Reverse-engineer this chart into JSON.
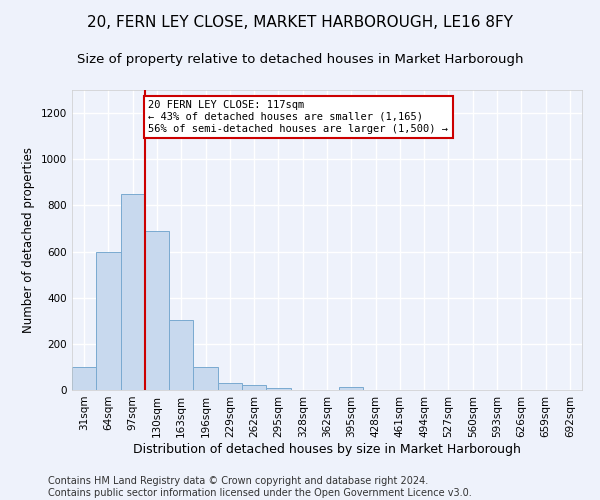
{
  "title": "20, FERN LEY CLOSE, MARKET HARBOROUGH, LE16 8FY",
  "subtitle": "Size of property relative to detached houses in Market Harborough",
  "xlabel": "Distribution of detached houses by size in Market Harborough",
  "ylabel": "Number of detached properties",
  "bar_labels": [
    "31sqm",
    "64sqm",
    "97sqm",
    "130sqm",
    "163sqm",
    "196sqm",
    "229sqm",
    "262sqm",
    "295sqm",
    "328sqm",
    "362sqm",
    "395sqm",
    "428sqm",
    "461sqm",
    "494sqm",
    "527sqm",
    "560sqm",
    "593sqm",
    "626sqm",
    "659sqm",
    "692sqm"
  ],
  "bar_values": [
    100,
    600,
    850,
    690,
    305,
    100,
    30,
    22,
    10,
    0,
    0,
    15,
    0,
    0,
    0,
    0,
    0,
    0,
    0,
    0,
    0
  ],
  "bar_color": "#c8d9ee",
  "bar_edge_color": "#7aaad0",
  "vline_x": 2.5,
  "vline_color": "#cc0000",
  "ylim": [
    0,
    1300
  ],
  "yticks": [
    0,
    200,
    400,
    600,
    800,
    1000,
    1200
  ],
  "annotation_text": "20 FERN LEY CLOSE: 117sqm\n← 43% of detached houses are smaller (1,165)\n56% of semi-detached houses are larger (1,500) →",
  "annotation_box_color": "#cc0000",
  "footer_line1": "Contains HM Land Registry data © Crown copyright and database right 2024.",
  "footer_line2": "Contains public sector information licensed under the Open Government Licence v3.0.",
  "background_color": "#eef2fb",
  "grid_color": "#ffffff",
  "title_fontsize": 11,
  "subtitle_fontsize": 9.5,
  "xlabel_fontsize": 9,
  "ylabel_fontsize": 8.5,
  "tick_fontsize": 7.5,
  "footer_fontsize": 7,
  "annotation_fontsize": 7.5
}
